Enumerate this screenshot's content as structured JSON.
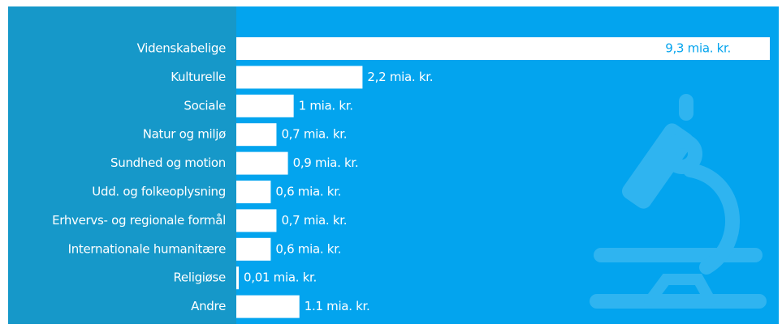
{
  "chart_data": {
    "type": "bar",
    "orientation": "horizontal",
    "categories": [
      "Videnskabelige",
      "Kulturelle",
      "Sociale",
      "Natur og miljø",
      "Sundhed og motion",
      "Udd. og folkeoplysning",
      "Erhvervs- og regionale formål",
      "Internationale humanitære",
      "Religiøse",
      "Andre"
    ],
    "values": [
      9.3,
      2.2,
      1,
      0.7,
      0.9,
      0.6,
      0.7,
      0.6,
      0.01,
      1.1
    ],
    "value_labels": [
      "9,3 mia. kr.",
      "2,2 mia. kr.",
      "1 mia. kr.",
      "0,7 mia. kr.",
      "0,9 mia. kr.",
      "0,6 mia. kr.",
      "0,7 mia. kr.",
      "0,6 mia. kr.",
      "0,01 mia. kr.",
      "1.1 mia. kr."
    ],
    "color": "#ffffff"
  }
}
